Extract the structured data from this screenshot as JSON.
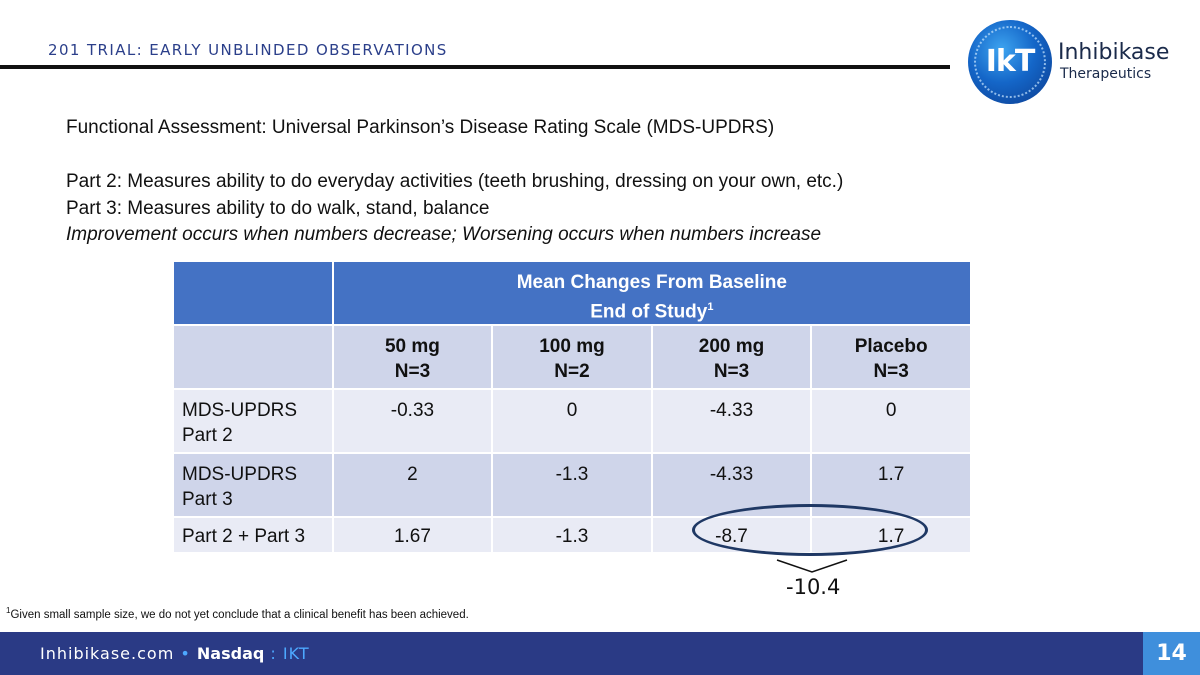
{
  "header": {
    "title": "201 TRIAL:  EARLY UNBLINDED OBSERVATIONS"
  },
  "logo": {
    "mark": "IkT",
    "name": "Inhibikase",
    "subname": "Therapeutics"
  },
  "intro": {
    "line1": "Functional Assessment:  Universal Parkinson’s Disease Rating Scale (MDS-UPDRS)",
    "line2": "Part 2:  Measures ability to do everyday activities (teeth brushing, dressing on your own, etc.)",
    "line3": "Part 3:  Measures ability to do walk, stand, balance",
    "line4": "Improvement occurs when numbers decrease; Worsening occurs when numbers increase"
  },
  "table": {
    "header_line1": "Mean Changes From Baseline",
    "header_line2": "End of Study",
    "header_sup": "1",
    "columns": [
      {
        "dose": "50 mg",
        "n": "N=3"
      },
      {
        "dose": "100 mg",
        "n": "N=2"
      },
      {
        "dose": "200 mg",
        "n": "N=3"
      },
      {
        "dose": "Placebo",
        "n": "N=3"
      }
    ],
    "rows": [
      {
        "label_line1": "MDS-UPDRS",
        "label_line2": "Part 2",
        "values": [
          "-0.33",
          "0",
          "-4.33",
          "0"
        ]
      },
      {
        "label_line1": "MDS-UPDRS",
        "label_line2": "Part 3",
        "values": [
          "2",
          "-1.3",
          "-4.33",
          "1.7"
        ]
      },
      {
        "label_line1": "Part 2 + Part 3",
        "label_line2": "",
        "values": [
          "1.67",
          "-1.3",
          "-8.7",
          "1.7"
        ]
      }
    ]
  },
  "annotation": {
    "difference": "-10.4"
  },
  "footnote": {
    "marker": "1",
    "text": "Given small sample size, we do not yet conclude that a clinical benefit has been achieved."
  },
  "footer": {
    "site": "Inhibikase.com",
    "bullet": "•",
    "exchange": "Nasdaq",
    "ticker": ": IKT",
    "page_number": "14"
  }
}
